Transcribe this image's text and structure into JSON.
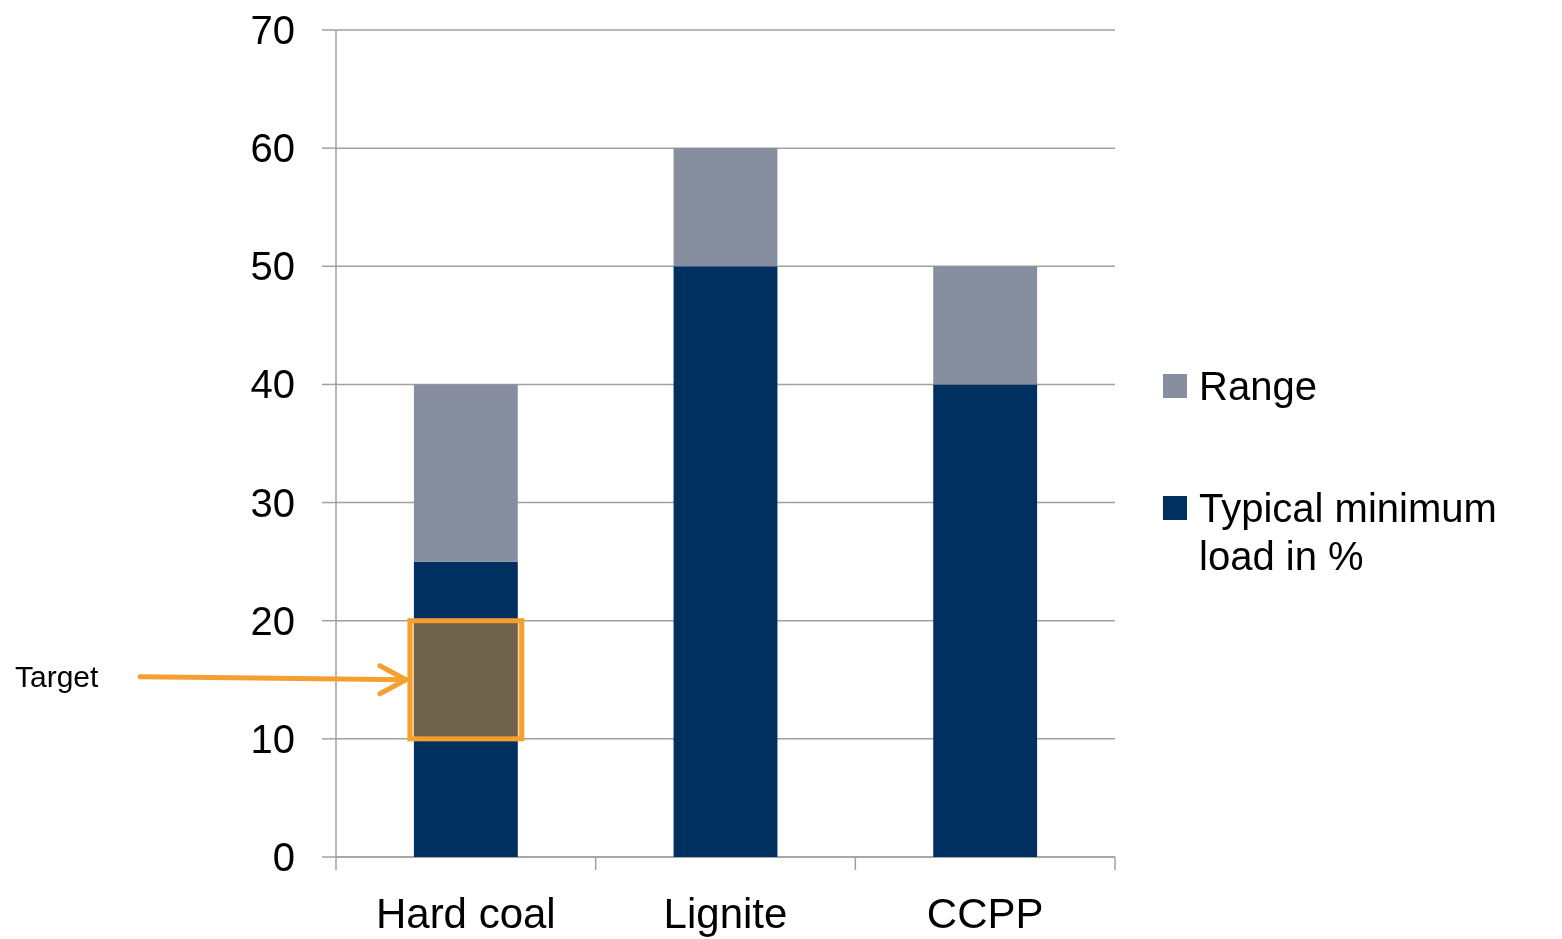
{
  "chart_data": {
    "type": "bar",
    "stacked": true,
    "categories": [
      "Hard coal",
      "Lignite",
      "CCPP"
    ],
    "series": [
      {
        "name": "Typical minimum load in %",
        "color": "#003060",
        "values": [
          25,
          50,
          40
        ]
      },
      {
        "name": "Range",
        "color": "#868ea0",
        "values": [
          15,
          10,
          10
        ]
      }
    ],
    "ylim": [
      0,
      70
    ],
    "yticks": [
      0,
      10,
      20,
      30,
      40,
      50,
      60,
      70
    ],
    "grid": "y",
    "legend": "right",
    "bands": [
      {
        "axis": "y",
        "from": 10,
        "to": 20,
        "color": "#f4a030"
      }
    ],
    "annotations": [
      "Target"
    ]
  }
}
